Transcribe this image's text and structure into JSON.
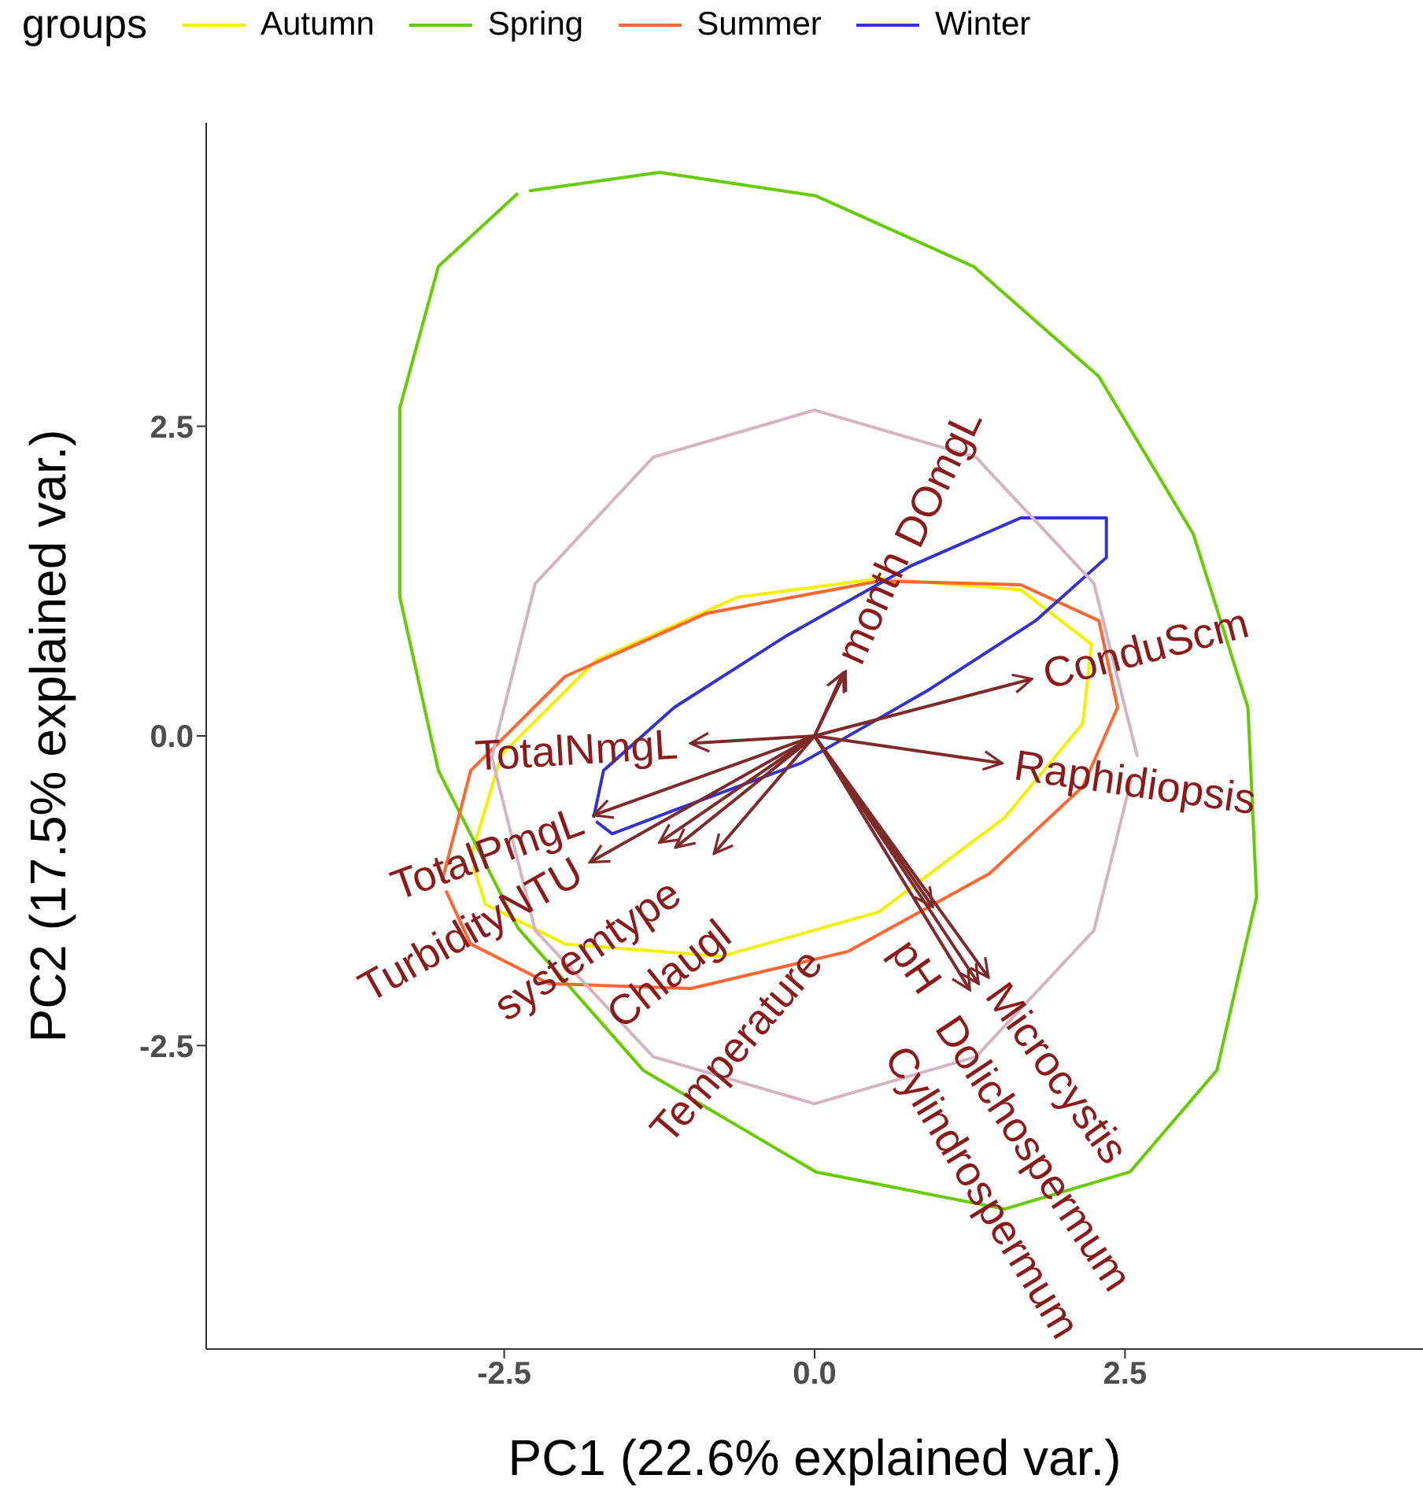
{
  "chart_data": {
    "type": "line",
    "xlabel": "PC1 (22.6% explained var.)",
    "ylabel": "PC2 (17.5% explained var.)",
    "legend_title": "groups",
    "legend": "top",
    "grid": false,
    "xlim": [
      -4.9,
      4.9
    ],
    "xticks": [
      -2.5,
      {
        "value": 0,
        "label": "0.0"
      },
      2.5
    ],
    "ylim": [
      -4.95,
      4.95
    ],
    "yticks": [
      -2.5,
      {
        "value": 0,
        "label": "0.0"
      },
      2.5
    ],
    "series": [
      {
        "name": "Autumn",
        "color": "#f2f200",
        "x": [
          -2.77,
          -2.52,
          -1.76,
          -0.62,
          0.52,
          1.66,
          2.23,
          2.16,
          1.53,
          0.52,
          -0.75,
          -2.01,
          -2.65,
          -2.75
        ],
        "values": [
          -0.98,
          -0.15,
          0.61,
          1.12,
          1.27,
          1.18,
          0.74,
          0.1,
          -0.66,
          -1.42,
          -1.78,
          -1.68,
          -1.36,
          -1.05
        ]
      },
      {
        "name": "Spring",
        "color": "#66cc00",
        "x": [
          -2.39,
          -3.03,
          -3.34,
          -3.34,
          -3.03,
          -2.39,
          -1.38,
          0.01,
          1.53,
          2.54,
          3.24,
          3.56,
          3.49,
          3.05,
          2.29,
          1.28,
          0.01,
          -1.25,
          -2.3
        ],
        "values": [
          4.38,
          3.79,
          2.65,
          1.12,
          -0.28,
          -1.55,
          -2.7,
          -3.52,
          -3.82,
          -3.52,
          -2.7,
          -1.3,
          0.23,
          1.63,
          2.9,
          3.79,
          4.36,
          4.55,
          4.4
        ]
      },
      {
        "name": "Summer",
        "color": "#ff6633",
        "x": [
          -3.0,
          -2.77,
          -2.01,
          -0.87,
          0.52,
          1.66,
          2.29,
          2.44,
          2.16,
          1.41,
          0.27,
          -1.0,
          -2.14,
          -2.77,
          -2.97
        ],
        "values": [
          -1.17,
          -0.28,
          0.48,
          0.99,
          1.25,
          1.22,
          0.93,
          0.23,
          -0.41,
          -1.11,
          -1.74,
          -2.04,
          -2.0,
          -1.68,
          -1.25
        ]
      },
      {
        "name": "Winter",
        "color": "#3333cc",
        "x": [
          -1.78,
          -1.7,
          -1.13,
          -0.24,
          0.77,
          1.66,
          2.35,
          2.35,
          1.78,
          0.9,
          -0.11,
          -1.13,
          -1.63,
          -1.76
        ],
        "values": [
          -0.66,
          -0.28,
          0.23,
          0.8,
          1.37,
          1.76,
          1.76,
          1.44,
          0.93,
          0.36,
          -0.22,
          -0.6,
          -0.79,
          -0.69
        ]
      },
      {
        "color": "#d4b3c3",
        "x": [
          2.6,
          2.25,
          1.3,
          0,
          -1.3,
          -2.25,
          -2.6,
          -2.25,
          -1.3,
          0,
          1.3,
          2.25,
          2.55
        ],
        "values": [
          -0.17,
          1.23,
          2.25,
          2.63,
          2.25,
          1.23,
          -0.17,
          -1.57,
          -2.59,
          -2.97,
          -2.59,
          -1.57,
          -0.35
        ]
      },
      {
        "color": "#7f2a2a",
        "x": [
          0,
          0.23
        ],
        "values": [
          0,
          0.51
        ]
      },
      {
        "color": "#7f2a2a",
        "x": [
          0,
          0.25
        ],
        "values": [
          0,
          0.52
        ]
      },
      {
        "color": "#7f2a2a",
        "x": [
          0,
          1.75
        ],
        "values": [
          0,
          0.46
        ]
      },
      {
        "color": "#7f2a2a",
        "x": [
          0,
          1.51
        ],
        "values": [
          0,
          -0.22
        ]
      },
      {
        "color": "#7f2a2a",
        "x": [
          0,
          -1.0
        ],
        "values": [
          0,
          -0.06
        ]
      },
      {
        "color": "#7f2a2a",
        "x": [
          0,
          -1.78
        ],
        "values": [
          0,
          -0.64
        ]
      },
      {
        "color": "#7f2a2a",
        "x": [
          0,
          -1.81
        ],
        "values": [
          0,
          -1.02
        ]
      },
      {
        "color": "#7f2a2a",
        "x": [
          0,
          -1.25
        ],
        "values": [
          0,
          -0.86
        ]
      },
      {
        "color": "#7f2a2a",
        "x": [
          0,
          -1.12
        ],
        "values": [
          0,
          -0.9
        ]
      },
      {
        "color": "#7f2a2a",
        "x": [
          0,
          -0.81
        ],
        "values": [
          0,
          -0.95
        ]
      },
      {
        "color": "#7f2a2a",
        "x": [
          0,
          0.95
        ],
        "values": [
          0,
          -1.38
        ]
      },
      {
        "color": "#7f2a2a",
        "x": [
          0,
          1.4
        ],
        "values": [
          0,
          -1.95
        ]
      },
      {
        "color": "#7f2a2a",
        "x": [
          0,
          1.32
        ],
        "values": [
          0,
          -2.0
        ]
      },
      {
        "color": "#7f2a2a",
        "x": [
          0,
          1.25
        ],
        "values": [
          0,
          -2.05
        ]
      }
    ],
    "annotations": [
      {
        "text": "month",
        "x": 0.23,
        "y": 0.51
      },
      {
        "text": "DOmgL",
        "x": 0.25,
        "y": 0.52
      },
      {
        "text": "ConduScm",
        "x": 1.75,
        "y": 0.46
      },
      {
        "text": "Raphidiopsis",
        "x": 1.51,
        "y": -0.22
      },
      {
        "text": "TotalNmgL",
        "x": -1.0,
        "y": -0.06
      },
      {
        "text": "TotalPmgL",
        "x": -1.78,
        "y": -0.64
      },
      {
        "text": "TurbidityNTU",
        "x": -1.81,
        "y": -1.02
      },
      {
        "text": "systemtype",
        "x": -1.25,
        "y": -0.86
      },
      {
        "text": "Chlaugl",
        "x": -1.12,
        "y": -0.9
      },
      {
        "text": "Temperature",
        "x": -0.81,
        "y": -0.95
      },
      {
        "text": "pH",
        "x": 0.95,
        "y": -1.38
      },
      {
        "text": "Microcystis",
        "x": 1.4,
        "y": -1.95
      },
      {
        "text": "Dolichospermum",
        "x": 1.32,
        "y": -2.0
      },
      {
        "text": "Cylindrospermum",
        "x": 1.25,
        "y": -2.05
      }
    ]
  }
}
